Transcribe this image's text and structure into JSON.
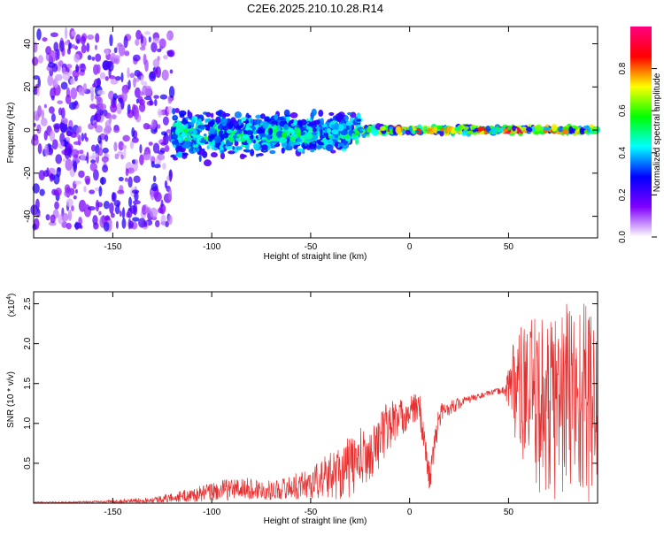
{
  "title": "C2E6.2025.210.10.28.R14",
  "chart_data": [
    {
      "type": "heatmap",
      "xlabel": "Height of straight line (km)",
      "ylabel": "Frequency (Hz)",
      "xlim": [
        -190,
        95
      ],
      "ylim": [
        -50,
        48
      ],
      "x_ticks": [
        -150,
        -100,
        -50,
        0,
        50
      ],
      "x_tick_labels": [
        "-150",
        "-100",
        "-50",
        "0",
        "50"
      ],
      "y_ticks": [
        -40,
        -20,
        0,
        20,
        40
      ],
      "y_tick_labels": [
        "-40",
        "-20",
        "0",
        "20",
        "40"
      ],
      "colorbar": {
        "label": "Normalized spectral amplitude",
        "range": [
          0,
          1
        ],
        "ticks": [
          0.0,
          0.2,
          0.4,
          0.6,
          0.8
        ],
        "tick_labels": [
          "0.0",
          "0.2",
          "0.4",
          "0.6",
          "0.8"
        ],
        "stops": [
          "#ffffff",
          "#8000ff",
          "#0000ff",
          "#00ffff",
          "#00ff00",
          "#ffff00",
          "#ff0000",
          "#ff0080"
        ]
      },
      "bands": [
        {
          "x_start": -190,
          "x_end": -120,
          "center": 0,
          "spread": 45,
          "amplitude": 0.25
        },
        {
          "x_start": -120,
          "x_end": -25,
          "center": -2,
          "spread": 10,
          "amplitude": 0.45
        },
        {
          "x_start": -25,
          "x_end": 95,
          "center": 0,
          "spread": 1.5,
          "amplitude": 0.9
        }
      ]
    },
    {
      "type": "line",
      "xlabel": "Height of straight line (km)",
      "ylabel": "SNR (10 * v/v)",
      "y_multiplier": "(x10",
      "y_multiplier_exp": "4",
      "y_multiplier_close": ")",
      "xlim": [
        -190,
        95
      ],
      "ylim": [
        0,
        2.65
      ],
      "x_ticks": [
        -150,
        -100,
        -50,
        0,
        50
      ],
      "x_tick_labels": [
        "-150",
        "-100",
        "-50",
        "0",
        "50"
      ],
      "y_ticks": [
        0.5,
        1.0,
        1.5,
        2.0,
        2.5
      ],
      "y_tick_labels": [
        "0.5",
        "1.0",
        "1.5",
        "2.0",
        "2.5"
      ],
      "color": "#e53030",
      "x": [
        -190,
        -170,
        -150,
        -130,
        -120,
        -110,
        -100,
        -90,
        -80,
        -70,
        -60,
        -50,
        -40,
        -30,
        -25,
        -20,
        -15,
        -10,
        -5,
        0,
        5,
        10,
        15,
        20,
        30,
        40,
        48,
        52,
        60,
        70,
        80,
        90,
        95
      ],
      "y": [
        0.01,
        0.01,
        0.02,
        0.04,
        0.07,
        0.1,
        0.14,
        0.18,
        0.18,
        0.16,
        0.2,
        0.25,
        0.35,
        0.45,
        0.55,
        0.6,
        0.8,
        1.0,
        1.05,
        1.15,
        1.2,
        0.3,
        1.1,
        1.2,
        1.3,
        1.38,
        1.42,
        1.5,
        1.3,
        1.2,
        1.35,
        1.3,
        1.2
      ],
      "noise": [
        0.01,
        0.01,
        0.02,
        0.04,
        0.06,
        0.09,
        0.12,
        0.14,
        0.14,
        0.12,
        0.15,
        0.2,
        0.3,
        0.4,
        0.4,
        0.3,
        0.35,
        0.35,
        0.25,
        0.2,
        0.2,
        0.2,
        0.15,
        0.1,
        0.05,
        0.03,
        0.05,
        0.6,
        1.0,
        1.2,
        1.3,
        1.3,
        1.2
      ]
    }
  ]
}
